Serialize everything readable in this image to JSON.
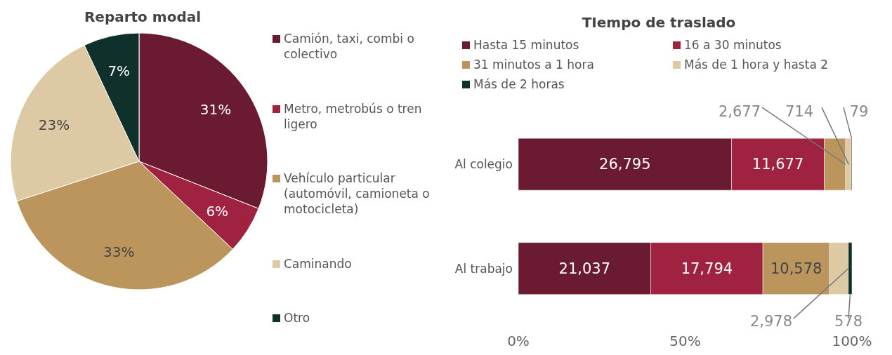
{
  "chart_data": [
    {
      "type": "pie",
      "title": "Reparto modal",
      "categories": [
        "Camión, taxi, combi o colectivo",
        "Metro, metrobús o tren ligero",
        "Vehículo particular (automóvil, camioneta o motocicleta)",
        "Caminando",
        "Otro"
      ],
      "values": [
        31,
        6,
        33,
        23,
        7
      ],
      "colors": [
        "#6a1b31",
        "#9f2241",
        "#bc955c",
        "#ddc9a3",
        "#10312b"
      ],
      "value_labels": [
        "31%",
        "6%",
        "33%",
        "23%",
        "7%"
      ],
      "legend": "right"
    },
    {
      "type": "bar",
      "title": "TIempo de traslado",
      "orientation": "horizontal",
      "stacked": true,
      "categories": [
        "Al colegio",
        "Al trabajo"
      ],
      "series": [
        {
          "name": "Hasta 15 minutos",
          "color": "#6a1b31",
          "values": [
            63.9,
            39.7
          ]
        },
        {
          "name": "16 a 30 minutos",
          "color": "#9f2241",
          "values": [
            27.8,
            33.6
          ]
        },
        {
          "name": "31 minutos a 1 hora",
          "color": "#bc955c",
          "values": [
            6.4,
            20.0
          ]
        },
        {
          "name": "Más de 1 hora y hasta 2",
          "color": "#ddc9a3",
          "values": [
            1.7,
            5.6
          ]
        },
        {
          "name": "Más de 2 horas",
          "color": "#10312b",
          "values": [
            0.2,
            1.1
          ]
        }
      ],
      "annotations": [
        "26,795",
        "11,677",
        {
          "text": "2,677",
          "x": 98.1,
          "y": "Al colegio"
        },
        {
          "text": "714",
          "x": 99.0,
          "y": "Al colegio"
        },
        "79",
        "21,037",
        "17,794",
        "10,578",
        {
          "text": "2,978",
          "x": 98.9,
          "y": "Al trabajo"
        },
        "578"
      ],
      "xlim": [
        0,
        100
      ],
      "xticks": [
        {
          "value": 0,
          "label": "0%"
        },
        {
          "value": 50,
          "label": "50%"
        },
        {
          "value": 100,
          "label": "100%"
        }
      ],
      "legend": "top"
    }
  ]
}
